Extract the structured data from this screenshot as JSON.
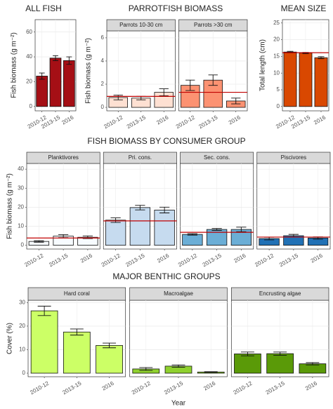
{
  "chart_data": [
    {
      "type": "bar",
      "title": "ALL FISH",
      "ylabel": "Fish biomass (g m⁻²)",
      "categories": [
        "2010-12",
        "2013-15",
        "2016"
      ],
      "ylim": [
        -3.5,
        70
      ],
      "yticks": [
        0,
        20,
        40,
        60
      ],
      "grid": true,
      "facets": [
        {
          "values": [
            24.5,
            39,
            37
          ],
          "errors": [
            2.5,
            2,
            3
          ],
          "color": "#a50f15"
        }
      ]
    },
    {
      "type": "bar",
      "title": "PARROTFISH BIOMASS",
      "ylabel": "Fish biomass (g m⁻²)",
      "categories": [
        "2010-12",
        "2013-15",
        "2016"
      ],
      "ylim": [
        -0.3,
        6.6
      ],
      "yticks": [
        0,
        2,
        4,
        6
      ],
      "grid": true,
      "facets": [
        {
          "name": "Parrots 10-30 cm",
          "values": [
            0.85,
            0.8,
            1.3
          ],
          "errors": [
            0.2,
            0.15,
            0.3
          ],
          "color": "#fee0d2",
          "reference": 0.95
        },
        {
          "name": "Parrots >30 cm",
          "values": [
            1.9,
            2.35,
            0.55
          ],
          "errors": [
            0.45,
            0.45,
            0.25
          ],
          "color": "#fc9272",
          "reference": 1.3
        }
      ]
    },
    {
      "type": "bar",
      "title": "MEAN SIZE",
      "ylabel": "Total length (cm)",
      "categories": [
        "2010-12",
        "2013-15",
        "2016"
      ],
      "ylim": [
        -1.3,
        26
      ],
      "yticks": [
        0,
        5,
        10,
        15,
        20,
        25
      ],
      "grid": true,
      "facets": [
        {
          "values": [
            16.3,
            16,
            14.6
          ],
          "errors": [
            0.2,
            0.2,
            0.3
          ],
          "color": "#d94801",
          "reference": 16.1
        }
      ]
    },
    {
      "type": "bar",
      "title": "FISH BIOMASS BY CONSUMER GROUP",
      "ylabel": "Fish biomass (g m⁻²)",
      "categories": [
        "2010-12",
        "2013-15",
        "2016"
      ],
      "ylim": [
        -2,
        43
      ],
      "yticks": [
        0,
        10,
        20,
        30,
        40
      ],
      "grid": true,
      "facets": [
        {
          "name": "Planktivores",
          "values": [
            2,
            4.8,
            4.2
          ],
          "errors": [
            0.4,
            0.8,
            0.7
          ],
          "color": "#f7fbff",
          "reference": 3.8
        },
        {
          "name": "Pri. cons.",
          "values": [
            13.2,
            19.8,
            18.5
          ],
          "errors": [
            1.2,
            1.2,
            1.5
          ],
          "color": "#c6dbef",
          "reference": 12.8
        },
        {
          "name": "Sec. cons.",
          "values": [
            5.7,
            8.3,
            8.3
          ],
          "errors": [
            0.4,
            0.5,
            1.2
          ],
          "color": "#6baed6",
          "reference": 6.8
        },
        {
          "name": "Piscivores",
          "values": [
            3.5,
            5,
            3.8
          ],
          "errors": [
            0.7,
            0.7,
            0.6
          ],
          "color": "#2171b5",
          "reference": 4.3
        }
      ]
    },
    {
      "type": "bar",
      "title": "MAJOR BENTHIC GROUPS",
      "ylabel": "Cover (%)",
      "xlabel": "Year",
      "categories": [
        "2010-12",
        "2013-15",
        "2016"
      ],
      "ylim": [
        -1.5,
        31
      ],
      "yticks": [
        0,
        10,
        20,
        30
      ],
      "grid": true,
      "facets": [
        {
          "name": "Hard coral",
          "values": [
            26.5,
            17.5,
            11.8
          ],
          "errors": [
            2,
            1.3,
            1
          ],
          "color": "#ccff66"
        },
        {
          "name": "Macroalgae",
          "values": [
            1.8,
            3,
            0.5
          ],
          "errors": [
            0.6,
            0.5,
            0.15
          ],
          "color": "#8fd12e"
        },
        {
          "name": "Encrusting algae",
          "values": [
            8.2,
            8.3,
            4
          ],
          "errors": [
            0.8,
            0.7,
            0.5
          ],
          "color": "#5a9a08"
        }
      ]
    }
  ]
}
